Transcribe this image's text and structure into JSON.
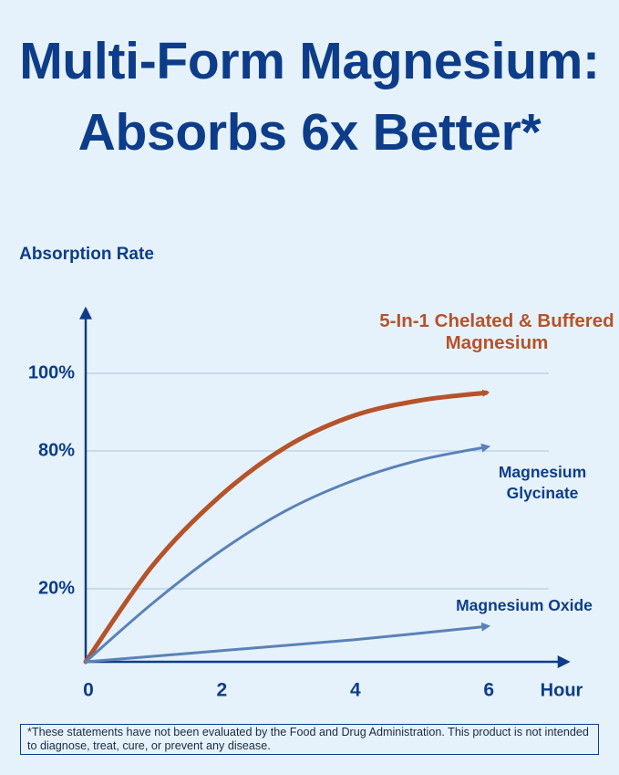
{
  "chart_data": {
    "type": "line",
    "title": "Multi-Form Magnesium: Absorbs 6x Better*",
    "y_label": "Absorption Rate",
    "x_label": "Hour",
    "x": [
      0,
      1,
      2,
      3,
      4,
      5,
      6
    ],
    "xlim": [
      0,
      7.25
    ],
    "xticks": [
      0,
      2,
      4,
      6
    ],
    "ylim": [
      0,
      117
    ],
    "yticks": [
      {
        "value": 20,
        "label": "20%"
      },
      {
        "value": 80,
        "label": "80%"
      },
      {
        "value": 100,
        "label": "100%"
      }
    ],
    "grid": true,
    "series": [
      {
        "name": "5-In-1 Chelated & Buffered Magnesium",
        "color": "#b5532a",
        "values": [
          0,
          30,
          60,
          81,
          89,
          93,
          95
        ]
      },
      {
        "name": "Magnesium Glycinate",
        "color": "#5a82b8",
        "values": [
          0,
          16,
          36,
          54,
          67,
          76,
          81
        ]
      },
      {
        "name": "Magnesium Oxide",
        "color": "#5a82b8",
        "values": [
          0,
          1.5,
          3,
          4.5,
          6,
          7.8,
          9.7
        ]
      }
    ],
    "footnote": "*These statements have not been evaluated by the Food and Drug Administration. This product is not intended to diagnose, treat, cure, or prevent any disease."
  }
}
